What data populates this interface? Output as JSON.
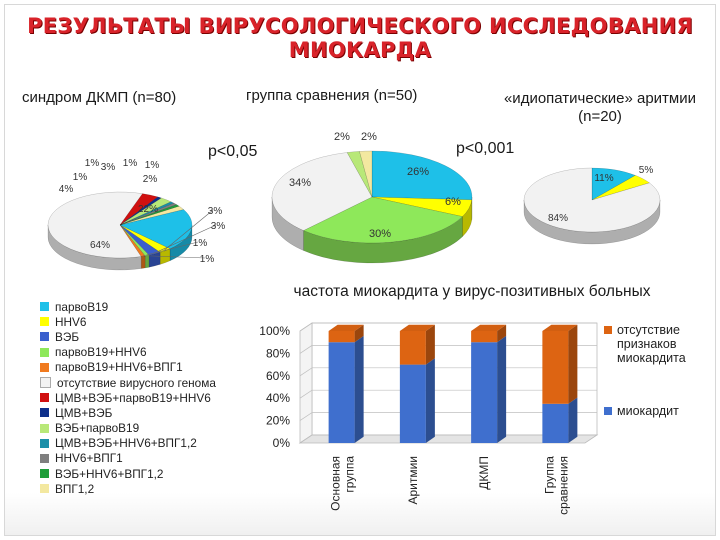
{
  "title": {
    "line1": "РЕЗУЛЬТАТЫ ВИРУСОЛОГИЧЕСКОГО ИССЛЕДОВАНИЯ",
    "line2": "МИОКАРДА"
  },
  "p_left": "p<0,05",
  "p_right": "p<0,001",
  "colors": {
    "parvoB19": "#1ec0e8",
    "hhv6": "#ffff00",
    "ebv": "#3a5fcd",
    "parvoB19_hhv6": "#8ee85a",
    "parvoB19_hhv6_vpg1": "#f07a1e",
    "no_virus": "#f2f2f2",
    "cmv_ebv_parvoB19_hhv6": "#d01010",
    "cmv_ebv": "#0e2f8a",
    "ebv_parvoB19": "#b8e878",
    "cmv_ebv_hhv6_vpg12": "#1b8fa8",
    "hhv6_vpg1": "#7f7f7f",
    "ebv_hhv6_vpg12": "#1e9e3a",
    "vpg12": "#f3e8a0",
    "myocarditis": "#3f6fce",
    "no_myocarditis": "#dd6412"
  },
  "legend": [
    {
      "label": "парвоB19",
      "color": "#1ec0e8"
    },
    {
      "label": "HHV6",
      "color": "#ffff00"
    },
    {
      "label": "ВЭБ",
      "color": "#3a5fcd"
    },
    {
      "label": "парвоB19+HHV6",
      "color": "#8ee85a"
    },
    {
      "label": "парвоB19+HHV6+ВПГ1",
      "color": "#f07a1e"
    },
    {
      "label": "отсутствие вирусного генома",
      "color": "#f2f2f2"
    },
    {
      "label": "ЦМВ+ВЭБ+парвоB19+HHV6",
      "color": "#d01010"
    },
    {
      "label": "ЦМВ+ВЭБ",
      "color": "#0e2f8a"
    },
    {
      "label": "ВЭБ+парвоB19",
      "color": "#b8e878"
    },
    {
      "label": "ЦМВ+ВЭБ+HHV6+ВПГ1,2",
      "color": "#1b8fa8"
    },
    {
      "label": "HHV6+ВПГ1",
      "color": "#7f7f7f"
    },
    {
      "label": "ВЭБ+HHV6+ВПГ1,2",
      "color": "#1e9e3a"
    },
    {
      "label": "ВПГ1,2",
      "color": "#f3e8a0"
    }
  ],
  "chart_data": [
    {
      "type": "pie",
      "title": "синдром ДКМП (n=80)",
      "slices": [
        {
          "label": "22%",
          "value": 22,
          "color": "#1ec0e8"
        },
        {
          "label": "3%",
          "value": 3,
          "color": "#ffff00"
        },
        {
          "label": "3%",
          "value": 3,
          "color": "#3a5fcd"
        },
        {
          "label": "1%",
          "value": 1,
          "color": "#8ee85a"
        },
        {
          "label": "1%",
          "value": 1,
          "color": "#f07a1e"
        },
        {
          "label": "64%",
          "value": 64,
          "color": "#f2f2f2"
        },
        {
          "label": "4%",
          "value": 4,
          "color": "#d01010"
        },
        {
          "label": "1%",
          "value": 1,
          "color": "#0e2f8a"
        },
        {
          "label": "3%",
          "value": 3,
          "color": "#b8e878"
        },
        {
          "label": "1%",
          "value": 1,
          "color": "#1b8fa8"
        },
        {
          "label": "1%",
          "value": 1,
          "color": "#7f7f7f"
        },
        {
          "label": "1%",
          "value": 1,
          "color": "#1e9e3a"
        },
        {
          "label": "2%",
          "value": 2,
          "color": "#f3e8a0"
        }
      ]
    },
    {
      "type": "pie",
      "title": "группа сравнения (n=50)",
      "slices": [
        {
          "label": "26%",
          "value": 26,
          "color": "#1ec0e8"
        },
        {
          "label": "6%",
          "value": 6,
          "color": "#ffff00"
        },
        {
          "label": "30%",
          "value": 30,
          "color": "#8ee85a"
        },
        {
          "label": "34%",
          "value": 34,
          "color": "#f2f2f2"
        },
        {
          "label": "2%",
          "value": 2,
          "color": "#b8e878"
        },
        {
          "label": "2%",
          "value": 2,
          "color": "#f3e8a0"
        }
      ]
    },
    {
      "type": "pie",
      "title": "«идиопатические» аритмии (n=20)",
      "slices": [
        {
          "label": "11%",
          "value": 11,
          "color": "#1ec0e8"
        },
        {
          "label": "5%",
          "value": 5,
          "color": "#ffff00"
        },
        {
          "label": "84%",
          "value": 84,
          "color": "#f2f2f2"
        }
      ]
    },
    {
      "type": "bar",
      "stacked": true,
      "title": "частота миокардита у вирус-позитивных больных",
      "categories": [
        "Основная группа",
        "Аритмии",
        "ДКМП",
        "Группа сравнения"
      ],
      "series": [
        {
          "name": "миокардит",
          "values": [
            90,
            70,
            90,
            35
          ],
          "color": "#3f6fce"
        },
        {
          "name": "отсутствие признаков миокардита",
          "values": [
            10,
            30,
            10,
            65
          ],
          "color": "#dd6412"
        }
      ],
      "ylim": [
        0,
        100
      ],
      "yticks": [
        "0%",
        "20%",
        "40%",
        "60%",
        "80%",
        "100%"
      ]
    }
  ]
}
